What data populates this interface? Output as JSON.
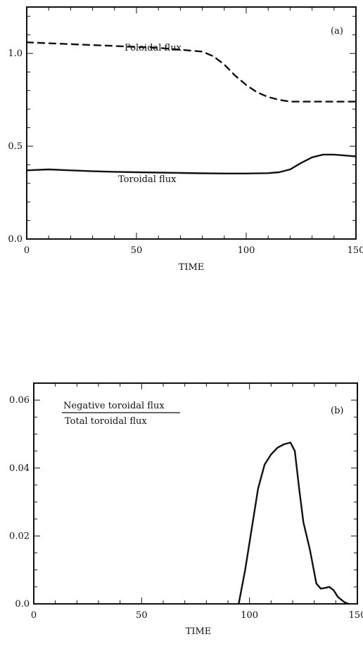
{
  "chart_data": [
    {
      "type": "line",
      "panel_label": "(a)",
      "xlabel": "TIME",
      "ylabel": "",
      "xlim": [
        0,
        150
      ],
      "ylim": [
        0.0,
        1.25
      ],
      "xticks": [
        0,
        50,
        100,
        150
      ],
      "xtick_labels": [
        "0",
        "50",
        "100",
        "150"
      ],
      "yticks": [
        0.0,
        0.5,
        1.0
      ],
      "ytick_labels": [
        "0.0",
        "0.5",
        "1.0"
      ],
      "series": [
        {
          "name": "Poloidal flux",
          "style": "dashed",
          "x": [
            0,
            10,
            20,
            30,
            40,
            50,
            60,
            70,
            80,
            85,
            90,
            95,
            100,
            105,
            110,
            115,
            120,
            125,
            130,
            140,
            150
          ],
          "y": [
            1.06,
            1.055,
            1.05,
            1.045,
            1.04,
            1.035,
            1.03,
            1.02,
            1.01,
            0.985,
            0.94,
            0.88,
            0.83,
            0.79,
            0.765,
            0.75,
            0.74,
            0.74,
            0.74,
            0.74,
            0.74
          ]
        },
        {
          "name": "Toroidal flux",
          "style": "solid",
          "x": [
            0,
            10,
            20,
            30,
            40,
            50,
            60,
            70,
            80,
            90,
            100,
            110,
            115,
            120,
            125,
            130,
            135,
            140,
            145,
            150
          ],
          "y": [
            0.37,
            0.375,
            0.37,
            0.365,
            0.362,
            0.36,
            0.358,
            0.356,
            0.354,
            0.353,
            0.353,
            0.355,
            0.36,
            0.375,
            0.41,
            0.44,
            0.455,
            0.455,
            0.45,
            0.445
          ]
        }
      ]
    },
    {
      "type": "line",
      "panel_label": "(b)",
      "xlabel": "TIME",
      "ylabel": "",
      "annotation_numerator": "Negative toroidal flux",
      "annotation_denominator": "Total toroidal flux",
      "xlim": [
        0,
        150
      ],
      "ylim": [
        0.0,
        0.065
      ],
      "xticks": [
        0,
        50,
        100,
        150
      ],
      "xtick_labels": [
        "0",
        "50",
        "100",
        "150"
      ],
      "yticks": [
        0.0,
        0.02,
        0.04,
        0.06
      ],
      "ytick_labels": [
        "0.0",
        "0.02",
        "0.04",
        "0.06"
      ],
      "series": [
        {
          "name": "",
          "style": "solid",
          "x": [
            95,
            98,
            101,
            104,
            107,
            110,
            113,
            116,
            119,
            121,
            123,
            125,
            128,
            131,
            133,
            135,
            137,
            139,
            141,
            144,
            146
          ],
          "y": [
            0.0,
            0.01,
            0.022,
            0.034,
            0.041,
            0.044,
            0.046,
            0.047,
            0.0475,
            0.045,
            0.034,
            0.024,
            0.016,
            0.006,
            0.0045,
            0.0047,
            0.005,
            0.004,
            0.002,
            0.0005,
            0.0
          ]
        }
      ]
    }
  ]
}
